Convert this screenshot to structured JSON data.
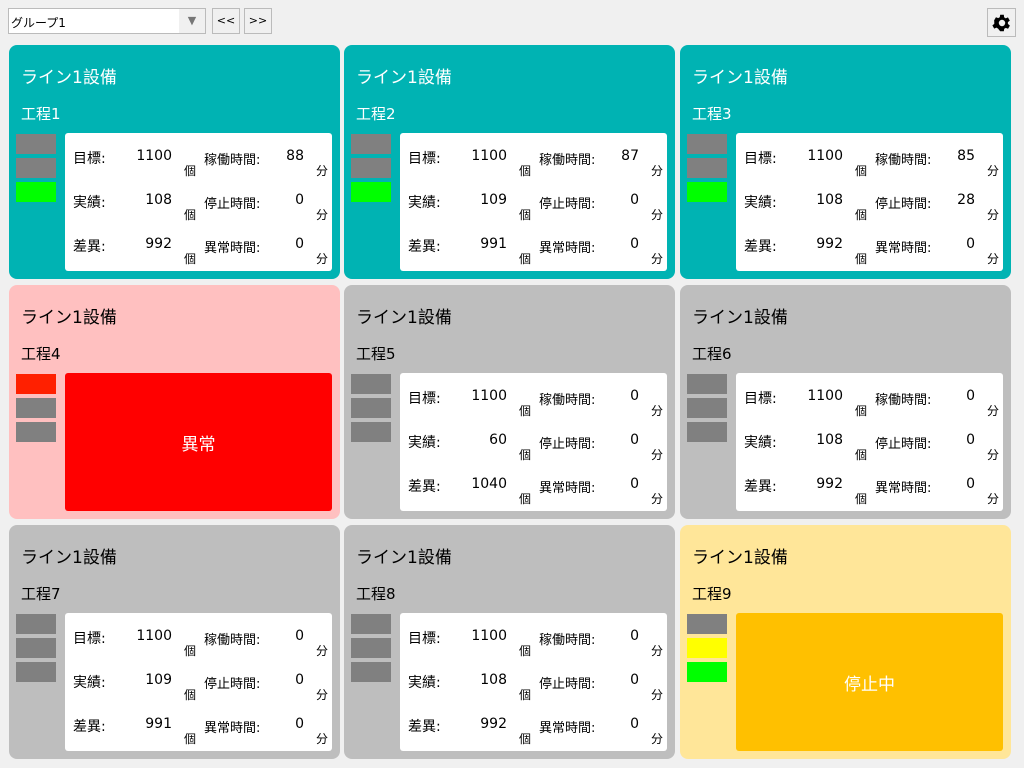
{
  "toolbar": {
    "group_select": "グループ1",
    "prev_label": "<<",
    "next_label": ">>",
    "settings_icon": "gear-icon"
  },
  "colors": {
    "running": "#00b3b3",
    "abnormal": "#ffc0c0",
    "idle": "#bebebe",
    "stopped": "#ffe699",
    "light_off": "#808080",
    "light_green": "#00ff00",
    "light_yellow": "#ffff00",
    "light_red": "#ff2000",
    "abnormal_panel": "#ff0000",
    "stopped_panel": "#ffc000"
  },
  "labels": {
    "target": "目標:",
    "actual": "実績:",
    "diff": "差異:",
    "run_time": "稼働時間:",
    "stop_time": "停止時間:",
    "error_time": "異常時間:",
    "pcs": "個",
    "min": "分"
  },
  "cards": [
    {
      "title": "ライン1設備",
      "process": "工程1",
      "state": "running",
      "lights": [
        "off",
        "off",
        "green"
      ],
      "target": "1100",
      "actual": "108",
      "diff": "992",
      "run": "88",
      "stop": "0",
      "error": "0"
    },
    {
      "title": "ライン1設備",
      "process": "工程2",
      "state": "running",
      "lights": [
        "off",
        "off",
        "green"
      ],
      "target": "1100",
      "actual": "109",
      "diff": "991",
      "run": "87",
      "stop": "0",
      "error": "0"
    },
    {
      "title": "ライン1設備",
      "process": "工程3",
      "state": "running",
      "lights": [
        "off",
        "off",
        "green"
      ],
      "target": "1100",
      "actual": "108",
      "diff": "992",
      "run": "85",
      "stop": "28",
      "error": "0"
    },
    {
      "title": "ライン1設備",
      "process": "工程4",
      "state": "abnormal",
      "lights": [
        "red",
        "off",
        "off"
      ],
      "message": "異常"
    },
    {
      "title": "ライン1設備",
      "process": "工程5",
      "state": "idle",
      "lights": [
        "off",
        "off",
        "off"
      ],
      "target": "1100",
      "actual": "60",
      "diff": "1040",
      "run": "0",
      "stop": "0",
      "error": "0"
    },
    {
      "title": "ライン1設備",
      "process": "工程6",
      "state": "idle",
      "lights": [
        "off",
        "off",
        "off"
      ],
      "target": "1100",
      "actual": "108",
      "diff": "992",
      "run": "0",
      "stop": "0",
      "error": "0"
    },
    {
      "title": "ライン1設備",
      "process": "工程7",
      "state": "idle",
      "lights": [
        "off",
        "off",
        "off"
      ],
      "target": "1100",
      "actual": "109",
      "diff": "991",
      "run": "0",
      "stop": "0",
      "error": "0"
    },
    {
      "title": "ライン1設備",
      "process": "工程8",
      "state": "idle",
      "lights": [
        "off",
        "off",
        "off"
      ],
      "target": "1100",
      "actual": "108",
      "diff": "992",
      "run": "0",
      "stop": "0",
      "error": "0"
    },
    {
      "title": "ライン1設備",
      "process": "工程9",
      "state": "stopped",
      "lights": [
        "off",
        "yellow",
        "green"
      ],
      "message": "停止中"
    }
  ]
}
